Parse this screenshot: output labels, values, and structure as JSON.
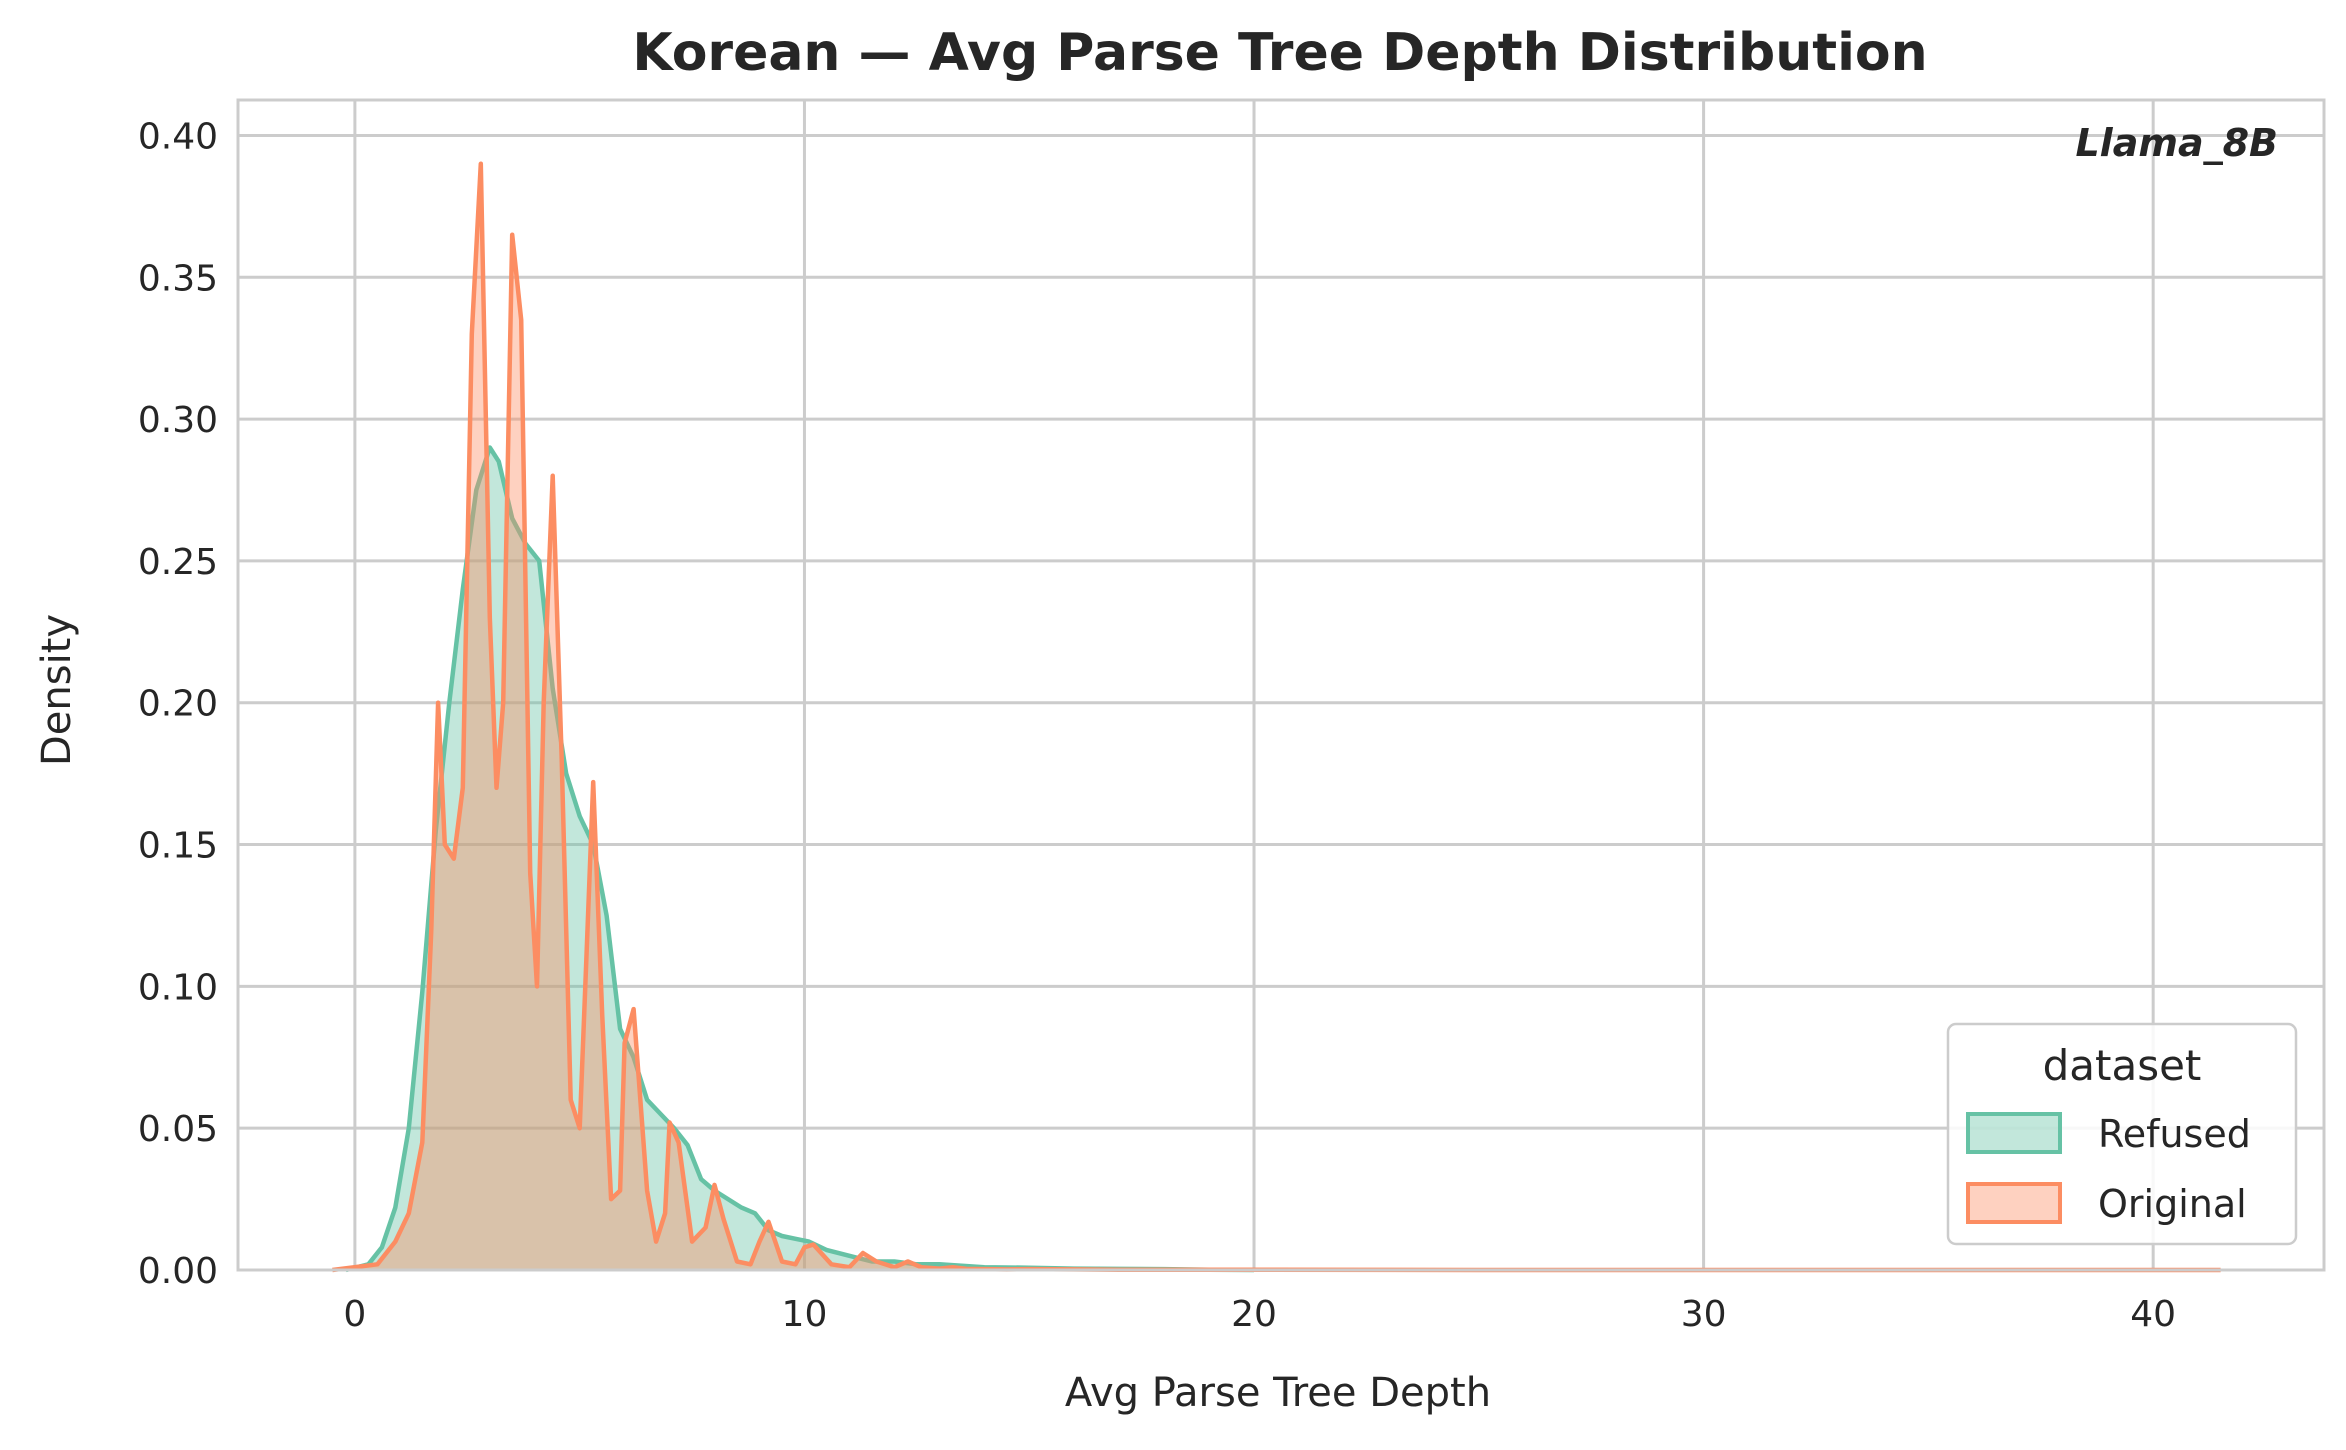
{
  "chart_data": {
    "type": "area",
    "title": "Korean — Avg Parse Tree Depth Distribution",
    "xlabel": "Avg Parse Tree Depth",
    "ylabel": "Density",
    "annotation": "Llama_8B",
    "xlim": [
      -2.6,
      43.8
    ],
    "ylim": [
      0,
      0.4125
    ],
    "x_ticks": [
      0,
      10,
      20,
      30,
      40
    ],
    "x_tick_labels": [
      "0",
      "10",
      "20",
      "30",
      "40"
    ],
    "y_ticks": [
      0,
      0.05,
      0.1,
      0.15,
      0.2,
      0.25,
      0.3,
      0.35,
      0.4
    ],
    "y_tick_labels": [
      "0.00",
      "0.05",
      "0.10",
      "0.15",
      "0.20",
      "0.25",
      "0.30",
      "0.35",
      "0.40"
    ],
    "grid": true,
    "legend": {
      "title": "dataset",
      "placement": "lower-right",
      "entries": [
        "Refused",
        "Original"
      ]
    },
    "series": [
      {
        "name": "Refused",
        "color": "#66c2a5",
        "x": [
          -0.2,
          0.3,
          0.6,
          0.9,
          1.2,
          1.5,
          1.8,
          2.1,
          2.4,
          2.7,
          3.0,
          3.2,
          3.5,
          3.8,
          4.1,
          4.4,
          4.7,
          5.0,
          5.3,
          5.6,
          5.9,
          6.2,
          6.5,
          6.8,
          7.1,
          7.4,
          7.7,
          8.0,
          8.3,
          8.6,
          8.9,
          9.2,
          9.5,
          9.8,
          10.1,
          10.5,
          11.0,
          11.5,
          12.0,
          12.5,
          13.0,
          13.5,
          14.0,
          15.0,
          16.0,
          17.0,
          18.0,
          19.0,
          20.0
        ],
        "values": [
          0.0,
          0.002,
          0.008,
          0.022,
          0.05,
          0.098,
          0.155,
          0.2,
          0.24,
          0.275,
          0.29,
          0.285,
          0.265,
          0.256,
          0.25,
          0.205,
          0.175,
          0.16,
          0.15,
          0.125,
          0.085,
          0.075,
          0.06,
          0.055,
          0.05,
          0.044,
          0.032,
          0.028,
          0.025,
          0.022,
          0.02,
          0.014,
          0.012,
          0.011,
          0.01,
          0.007,
          0.005,
          0.003,
          0.003,
          0.002,
          0.002,
          0.0015,
          0.001,
          0.0008,
          0.0005,
          0.0004,
          0.0003,
          0.0001,
          0.0
        ]
      },
      {
        "name": "Original",
        "color": "#fc8d62",
        "x": [
          -0.5,
          0.5,
          0.9,
          1.2,
          1.5,
          1.7,
          1.85,
          2.0,
          2.2,
          2.4,
          2.6,
          2.8,
          3.0,
          3.15,
          3.3,
          3.5,
          3.7,
          3.9,
          4.05,
          4.2,
          4.4,
          4.6,
          4.8,
          5.0,
          5.15,
          5.3,
          5.5,
          5.7,
          5.9,
          6.0,
          6.2,
          6.5,
          6.7,
          6.9,
          7.0,
          7.2,
          7.5,
          7.8,
          8.0,
          8.2,
          8.5,
          8.8,
          9.0,
          9.2,
          9.5,
          9.8,
          10.0,
          10.2,
          10.6,
          11.0,
          11.3,
          11.6,
          12.0,
          12.3,
          12.6,
          13.0,
          13.3,
          13.6,
          14.0,
          14.5,
          15.0,
          16.0,
          17.0,
          18.0,
          19.0,
          20.0,
          25.0,
          30.0,
          35.0,
          41.5
        ],
        "values": [
          0.0,
          0.002,
          0.01,
          0.02,
          0.045,
          0.12,
          0.2,
          0.15,
          0.145,
          0.17,
          0.33,
          0.39,
          0.23,
          0.17,
          0.2,
          0.365,
          0.335,
          0.14,
          0.1,
          0.2,
          0.28,
          0.18,
          0.06,
          0.05,
          0.11,
          0.172,
          0.09,
          0.025,
          0.028,
          0.08,
          0.092,
          0.028,
          0.01,
          0.02,
          0.052,
          0.045,
          0.01,
          0.015,
          0.03,
          0.018,
          0.003,
          0.002,
          0.01,
          0.017,
          0.003,
          0.002,
          0.008,
          0.009,
          0.002,
          0.001,
          0.006,
          0.003,
          0.001,
          0.003,
          0.001,
          0.0005,
          0.001,
          0.0004,
          0.0003,
          0.0002,
          0.0003,
          0.0002,
          0.0001,
          0.0001,
          0.0001,
          0.0001,
          0.0,
          0.0,
          0.0,
          0.0
        ]
      }
    ]
  }
}
